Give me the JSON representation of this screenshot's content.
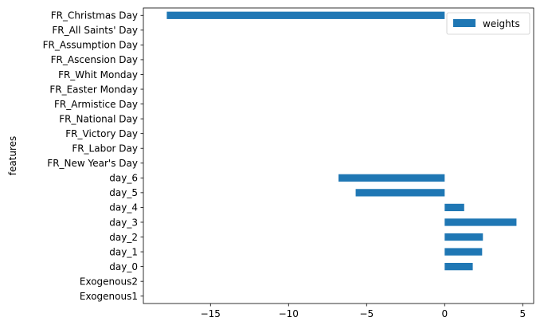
{
  "chart_data": {
    "type": "bar",
    "orientation": "horizontal",
    "ylabel": "features",
    "xlabel": "",
    "categories": [
      "FR_Christmas Day",
      "FR_All Saints' Day",
      "FR_Assumption Day",
      "FR_Ascension Day",
      "FR_Whit Monday",
      "FR_Easter Monday",
      "FR_Armistice Day",
      "FR_National Day",
      "FR_Victory Day",
      "FR_Labor Day",
      "FR_New Year's Day",
      "day_6",
      "day_5",
      "day_4",
      "day_3",
      "day_2",
      "day_1",
      "day_0",
      "Exogenous2",
      "Exogenous1"
    ],
    "series": [
      {
        "name": "weights",
        "color": "#1f77b4",
        "values": [
          -17.8,
          0,
          0,
          0,
          0,
          0,
          0,
          0,
          0,
          0,
          0,
          -6.8,
          -5.7,
          1.25,
          4.6,
          2.45,
          2.4,
          1.8,
          0,
          0
        ]
      }
    ],
    "xlim": [
      -19.3,
      5.7
    ],
    "xticks": [
      -15,
      -10,
      -5,
      0,
      5
    ],
    "xtick_labels": [
      "−15",
      "−10",
      "−5",
      "0",
      "5"
    ],
    "grid": false,
    "legend": {
      "position": "top-right"
    }
  }
}
